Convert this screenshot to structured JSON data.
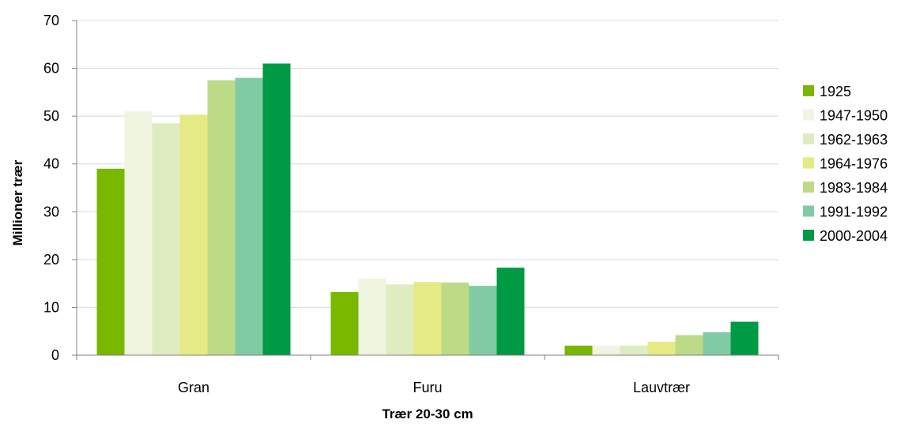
{
  "chart_data": {
    "type": "bar",
    "title": "",
    "xlabel": "Trær 20-30 cm",
    "ylabel": "Millioner trær",
    "ylim": [
      0,
      70
    ],
    "yticks": [
      0,
      10,
      20,
      30,
      40,
      50,
      60,
      70
    ],
    "grid": true,
    "legend_position": "right",
    "categories": [
      "Gran",
      "Furu",
      "Lauvtrær"
    ],
    "series": [
      {
        "name": "1925",
        "color": "#7ab800",
        "values": [
          39.0,
          13.2,
          2.0
        ]
      },
      {
        "name": "1947-1950",
        "color": "#eff5df",
        "values": [
          51.0,
          16.0,
          2.0
        ]
      },
      {
        "name": "1962-1963",
        "color": "#dfecc2",
        "values": [
          48.5,
          14.8,
          2.0
        ]
      },
      {
        "name": "1964-1976",
        "color": "#e5ea84",
        "values": [
          50.3,
          15.3,
          2.8
        ]
      },
      {
        "name": "1983-1984",
        "color": "#bddb87",
        "values": [
          57.5,
          15.2,
          4.2
        ]
      },
      {
        "name": "1991-1992",
        "color": "#80cba3",
        "values": [
          58.0,
          14.5,
          4.8
        ]
      },
      {
        "name": "2000-2004",
        "color": "#009a44",
        "values": [
          61.0,
          18.3,
          7.0
        ]
      }
    ]
  }
}
